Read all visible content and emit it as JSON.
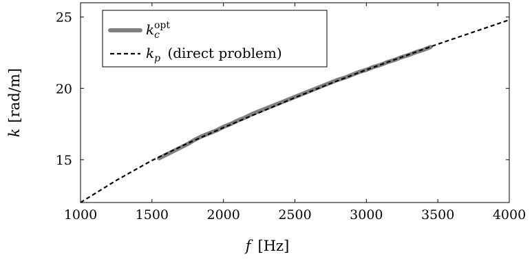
{
  "chart_data": {
    "type": "line",
    "xlabel": {
      "symbol": "f",
      "unit": "[Hz]"
    },
    "ylabel": {
      "symbol": "k",
      "unit": "[rad/m]"
    },
    "xlim": [
      1000,
      4000
    ],
    "ylim": [
      12,
      26
    ],
    "xticks": [
      1000,
      1500,
      2000,
      2500,
      3000,
      3500,
      4000
    ],
    "yticks": [
      15,
      20,
      25
    ],
    "grid": false,
    "legend_position": "top-left",
    "series": [
      {
        "name": "k_c^opt",
        "legend": {
          "symbol": "k",
          "sub": "c",
          "sup": "opt",
          "suffix": ""
        },
        "style": "solid-thick",
        "color": "#808080",
        "x": [
          1550,
          1600,
          1650,
          1700,
          1750,
          1800,
          1850,
          1900,
          1950,
          2000,
          2050,
          2100,
          2150,
          2200,
          2250,
          2300,
          2350,
          2400,
          2450,
          2500,
          2550,
          2600,
          2650,
          2700,
          2750,
          2800,
          2850,
          2900,
          2950,
          3000,
          3050,
          3100,
          3150,
          3200,
          3250,
          3300,
          3350,
          3400,
          3450
        ],
        "y": [
          15.1,
          15.35,
          15.6,
          15.85,
          16.1,
          16.4,
          16.65,
          16.85,
          17.05,
          17.3,
          17.5,
          17.75,
          17.95,
          18.2,
          18.4,
          18.6,
          18.8,
          19.0,
          19.2,
          19.4,
          19.6,
          19.8,
          20.0,
          20.2,
          20.4,
          20.6,
          20.75,
          20.95,
          21.15,
          21.3,
          21.5,
          21.65,
          21.85,
          22.0,
          22.2,
          22.35,
          22.55,
          22.7,
          22.9
        ]
      },
      {
        "name": "k_p (direct problem)",
        "legend": {
          "symbol": "k",
          "sub": "p",
          "sup": "",
          "suffix": " (direct problem)"
        },
        "style": "dashed",
        "color": "#000000",
        "x": [
          1000,
          1250,
          1500,
          1750,
          2000,
          2250,
          2500,
          2750,
          3000,
          3250,
          3500,
          3750,
          4000
        ],
        "y": [
          12.0,
          13.55,
          14.95,
          16.15,
          17.25,
          18.3,
          19.35,
          20.35,
          21.3,
          22.2,
          23.1,
          23.95,
          24.8
        ]
      }
    ]
  }
}
